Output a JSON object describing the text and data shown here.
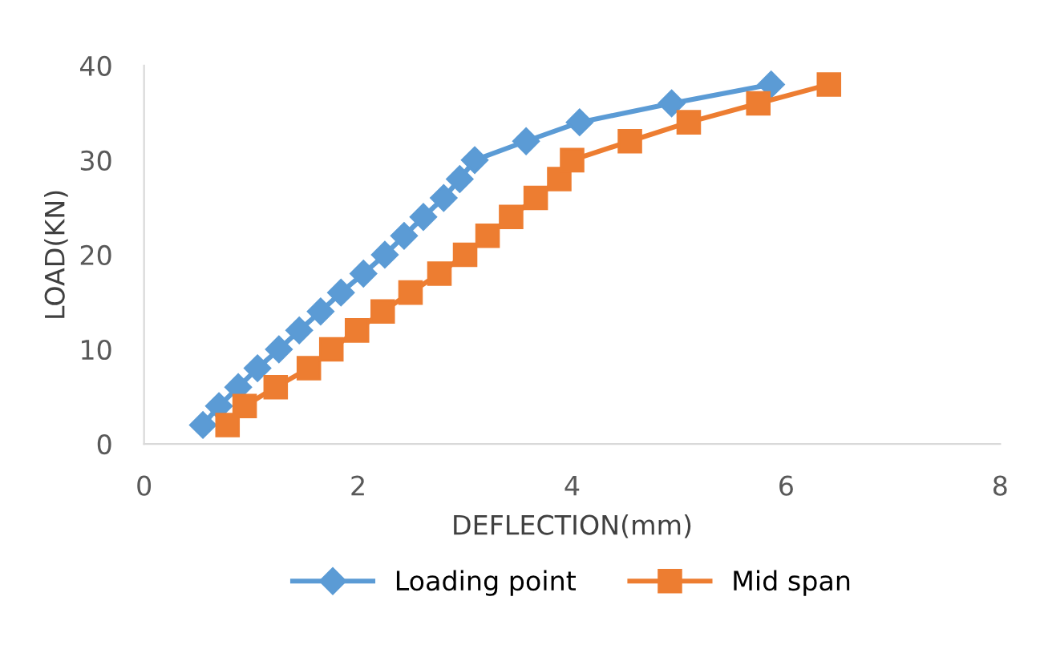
{
  "chart_data": {
    "type": "line",
    "xlabel": "DEFLECTION(mm)",
    "ylabel": "LOAD(KN)",
    "xlim": [
      0,
      8
    ],
    "xticks": [
      0,
      2,
      4,
      6,
      8
    ],
    "ylim": [
      0,
      40
    ],
    "yticks": [
      0,
      10,
      20,
      30,
      40
    ],
    "grid": false,
    "legend": "bottom",
    "series": [
      {
        "name": "Loading point",
        "color": "#5b9bd5",
        "marker": "diamond",
        "x": [
          0.55,
          0.7,
          0.88,
          1.06,
          1.26,
          1.45,
          1.65,
          1.84,
          2.05,
          2.25,
          2.43,
          2.61,
          2.8,
          2.95,
          3.09,
          3.57,
          4.07,
          4.93,
          5.86
        ],
        "values": [
          2,
          4,
          6,
          8,
          10,
          12,
          14,
          16,
          18,
          20,
          22,
          24,
          26,
          28,
          30,
          32,
          34,
          36,
          38
        ]
      },
      {
        "name": "Mid span",
        "color": "#ed7d31",
        "marker": "square",
        "x": [
          0.78,
          0.94,
          1.23,
          1.54,
          1.75,
          1.99,
          2.23,
          2.49,
          2.76,
          3.0,
          3.21,
          3.43,
          3.66,
          3.88,
          4.0,
          4.54,
          5.09,
          5.74,
          6.4
        ],
        "values": [
          2,
          4,
          6,
          8,
          10,
          12,
          14,
          16,
          18,
          20,
          22,
          24,
          26,
          28,
          30,
          32,
          34,
          36,
          38
        ]
      }
    ]
  }
}
